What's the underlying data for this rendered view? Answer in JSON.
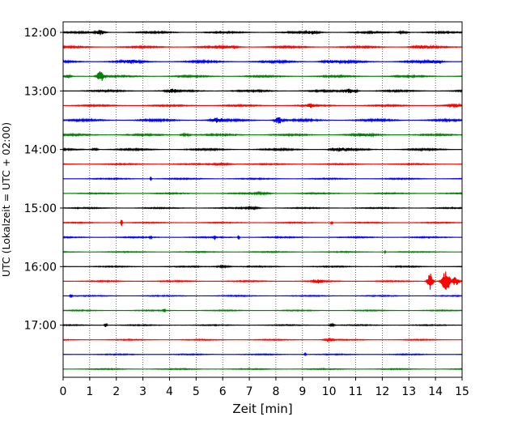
{
  "chart_data": {
    "type": "line",
    "title": "",
    "xlabel": "Zeit  [min]",
    "ylabel": "UTC (Lokalzeit = UTC + 02:00)",
    "xlim": [
      0,
      15
    ],
    "x_ticks": [
      0,
      1,
      2,
      3,
      4,
      5,
      6,
      7,
      8,
      9,
      10,
      11,
      12,
      13,
      14,
      15
    ],
    "grid": "vertical dotted",
    "legend": "none",
    "y_ticks": [
      "12:00",
      "13:00",
      "14:00",
      "15:00",
      "16:00",
      "17:00"
    ],
    "line_interval_minutes": 15,
    "trace_colors": [
      "#000000",
      "#ff0000",
      "#0000ff",
      "#008000"
    ],
    "traces": [
      {
        "start": "12:00",
        "noise": 1.0,
        "events": [
          [
            1.4,
            3,
            0.15
          ],
          [
            9.4,
            2,
            0.2
          ],
          [
            12.8,
            1.5,
            0.2
          ]
        ]
      },
      {
        "start": "12:15",
        "noise": 1.0,
        "events": [
          [
            6.2,
            1.5,
            0.3
          ],
          [
            13.5,
            1.5,
            0.3
          ]
        ]
      },
      {
        "start": "12:30",
        "noise": 1.2,
        "events": [
          [
            2.5,
            1.5,
            0.3
          ],
          [
            10.0,
            1.5,
            0.3
          ],
          [
            14.0,
            1.5,
            0.2
          ]
        ]
      },
      {
        "start": "12:45",
        "noise": 1.0,
        "events": [
          [
            1.4,
            7,
            0.12
          ],
          [
            0.2,
            1.5,
            0.1
          ]
        ]
      },
      {
        "start": "13:00",
        "noise": 1.0,
        "events": [
          [
            4.1,
            2,
            0.2
          ],
          [
            10.8,
            2.5,
            0.25
          ]
        ]
      },
      {
        "start": "13:15",
        "noise": 0.9,
        "events": [
          [
            9.3,
            2.5,
            0.1
          ],
          [
            14.7,
            2,
            0.15
          ]
        ]
      },
      {
        "start": "13:30",
        "noise": 1.2,
        "events": [
          [
            5.8,
            2.5,
            0.2
          ],
          [
            8.1,
            4,
            0.15
          ]
        ]
      },
      {
        "start": "13:45",
        "noise": 1.0,
        "events": [
          [
            4.6,
            1.5,
            0.2
          ],
          [
            11.3,
            1.5,
            0.3
          ]
        ]
      },
      {
        "start": "14:00",
        "noise": 1.0,
        "events": [
          [
            1.2,
            2,
            0.1
          ],
          [
            10.4,
            2,
            0.3
          ]
        ]
      },
      {
        "start": "14:15",
        "noise": 0.7,
        "events": [
          [
            6.0,
            1.0,
            0.4
          ]
        ]
      },
      {
        "start": "14:30",
        "noise": 0.7,
        "events": [
          [
            3.3,
            3,
            0.03
          ]
        ]
      },
      {
        "start": "14:45",
        "noise": 0.7,
        "events": [
          [
            7.5,
            1.0,
            0.3
          ]
        ]
      },
      {
        "start": "15:00",
        "noise": 0.7,
        "events": [
          [
            7.1,
            1.0,
            0.3
          ]
        ]
      },
      {
        "start": "15:15",
        "noise": 0.6,
        "events": [
          [
            2.2,
            6,
            0.03
          ],
          [
            10.1,
            4,
            0.03
          ]
        ]
      },
      {
        "start": "15:30",
        "noise": 0.7,
        "events": [
          [
            3.3,
            3,
            0.03
          ],
          [
            5.7,
            3,
            0.03
          ],
          [
            6.6,
            3,
            0.03
          ]
        ]
      },
      {
        "start": "15:45",
        "noise": 0.6,
        "events": [
          [
            12.1,
            1.5,
            0.03
          ]
        ]
      },
      {
        "start": "16:00",
        "noise": 0.7,
        "events": [
          [
            6.0,
            1.0,
            0.3
          ]
        ]
      },
      {
        "start": "16:15",
        "noise": 0.7,
        "events": [
          [
            9.6,
            2,
            0.15
          ],
          [
            13.8,
            11,
            0.1
          ],
          [
            14.4,
            14,
            0.15
          ],
          [
            14.75,
            6,
            0.1
          ]
        ]
      },
      {
        "start": "16:30",
        "noise": 0.6,
        "events": [
          [
            0.3,
            2,
            0.05
          ]
        ]
      },
      {
        "start": "16:45",
        "noise": 0.6,
        "events": [
          [
            3.8,
            1.5,
            0.05
          ]
        ]
      },
      {
        "start": "17:00",
        "noise": 0.6,
        "events": [
          [
            1.6,
            2.5,
            0.05
          ],
          [
            10.1,
            1.5,
            0.1
          ]
        ]
      },
      {
        "start": "17:15",
        "noise": 0.6,
        "events": [
          [
            10.0,
            1.0,
            0.2
          ]
        ]
      },
      {
        "start": "17:30",
        "noise": 0.6,
        "events": [
          [
            9.1,
            1.5,
            0.05
          ]
        ]
      },
      {
        "start": "17:45",
        "noise": 0.6,
        "events": []
      }
    ]
  }
}
